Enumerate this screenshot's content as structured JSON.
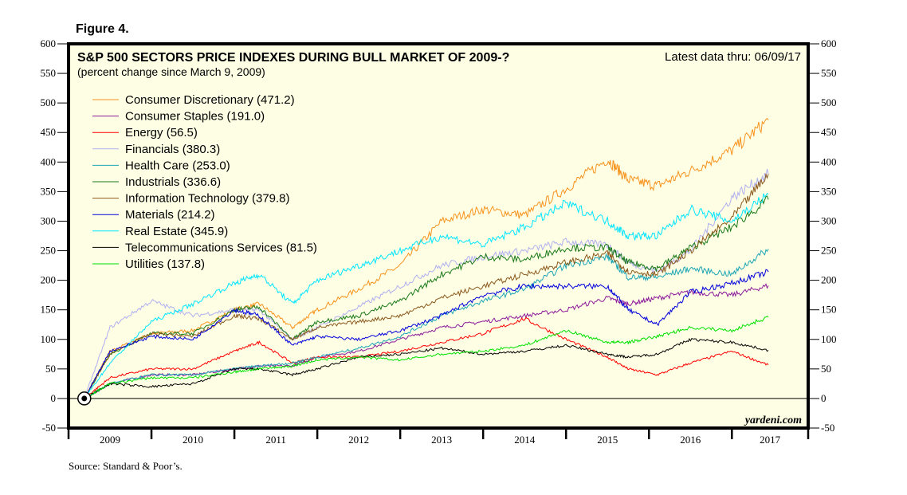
{
  "figure_label": "Figure 4.",
  "source": "Source: Standard & Poor’s.",
  "chart_data": {
    "type": "line",
    "title": "S&P 500 SECTORS PRICE INDEXES DURING BULL MARKET OF 2009-?",
    "subtitle": "(percent change since March 9, 2009)",
    "note": "Latest data thru: 06/09/17",
    "watermark": "yardeni.com",
    "xlabel": "",
    "ylabel": "",
    "ylim": [
      -50,
      600
    ],
    "yticks": [
      -50,
      0,
      50,
      100,
      150,
      200,
      250,
      300,
      350,
      400,
      450,
      500,
      550,
      600
    ],
    "xlim": [
      2009.0,
      2017.92
    ],
    "xtick_labels": [
      "2009",
      "2010",
      "2011",
      "2012",
      "2013",
      "2014",
      "2015",
      "2016",
      "2017"
    ],
    "zero_line": true,
    "grid": false,
    "legend_position": "top-left",
    "background": "#fefee4",
    "x": [
      2009.19,
      2009.5,
      2010.0,
      2010.5,
      2011.0,
      2011.3,
      2011.7,
      2012.0,
      2012.5,
      2013.0,
      2013.5,
      2014.0,
      2014.5,
      2015.0,
      2015.5,
      2015.75,
      2016.1,
      2016.5,
      2017.0,
      2017.44
    ],
    "series": [
      {
        "name": "Consumer Discretionary",
        "last": "471.2",
        "color": "#f7931e",
        "values": [
          0,
          80,
          110,
          115,
          150,
          160,
          120,
          150,
          185,
          225,
          300,
          320,
          310,
          355,
          405,
          370,
          360,
          385,
          420,
          471.2
        ]
      },
      {
        "name": "Consumer Staples",
        "last": "191.0",
        "color": "#8b1a9b",
        "values": [
          0,
          25,
          40,
          40,
          50,
          55,
          55,
          70,
          80,
          100,
          120,
          130,
          140,
          150,
          170,
          160,
          170,
          180,
          175,
          191.0
        ]
      },
      {
        "name": "Energy",
        "last": "56.5",
        "color": "#ff0000",
        "values": [
          0,
          35,
          50,
          50,
          80,
          95,
          60,
          70,
          70,
          80,
          95,
          110,
          135,
          100,
          70,
          50,
          40,
          60,
          80,
          56.5
        ]
      },
      {
        "name": "Financials",
        "last": "380.3",
        "color": "#b0b0f0",
        "values": [
          0,
          120,
          165,
          140,
          150,
          150,
          100,
          120,
          155,
          190,
          225,
          240,
          250,
          265,
          260,
          230,
          215,
          250,
          340,
          380.3
        ]
      },
      {
        "name": "Health Care",
        "last": "253.0",
        "color": "#1ca5b5",
        "values": [
          0,
          25,
          40,
          40,
          50,
          55,
          60,
          70,
          85,
          105,
          140,
          165,
          185,
          225,
          240,
          205,
          205,
          220,
          210,
          253.0
        ]
      },
      {
        "name": "Industrials",
        "last": "336.6",
        "color": "#1a7a1a",
        "values": [
          0,
          75,
          110,
          110,
          150,
          155,
          100,
          130,
          140,
          165,
          210,
          240,
          235,
          255,
          255,
          230,
          220,
          255,
          290,
          336.6
        ]
      },
      {
        "name": "Information Technology",
        "last": "379.8",
        "color": "#8b5a1e",
        "values": [
          0,
          75,
          110,
          105,
          140,
          135,
          100,
          120,
          130,
          140,
          170,
          190,
          210,
          230,
          245,
          215,
          210,
          250,
          305,
          379.8
        ]
      },
      {
        "name": "Materials",
        "last": "214.2",
        "color": "#0000dd",
        "values": [
          0,
          80,
          105,
          100,
          150,
          140,
          90,
          105,
          100,
          115,
          140,
          175,
          190,
          190,
          190,
          150,
          125,
          180,
          195,
          214.2
        ]
      },
      {
        "name": "Real Estate",
        "last": "345.9",
        "color": "#00e5ff",
        "values": [
          0,
          60,
          130,
          160,
          195,
          210,
          160,
          200,
          225,
          250,
          275,
          260,
          290,
          330,
          300,
          275,
          275,
          320,
          300,
          345.9
        ]
      },
      {
        "name": "Telecommunications Services",
        "last": "81.5",
        "color": "#000000",
        "values": [
          0,
          25,
          20,
          25,
          50,
          50,
          40,
          50,
          70,
          75,
          85,
          75,
          80,
          90,
          75,
          70,
          75,
          100,
          95,
          81.5
        ]
      },
      {
        "name": "Utilities",
        "last": "137.8",
        "color": "#00e000",
        "values": [
          0,
          25,
          35,
          35,
          45,
          50,
          55,
          65,
          70,
          65,
          75,
          80,
          90,
          115,
          95,
          95,
          105,
          120,
          115,
          137.8
        ]
      }
    ]
  }
}
